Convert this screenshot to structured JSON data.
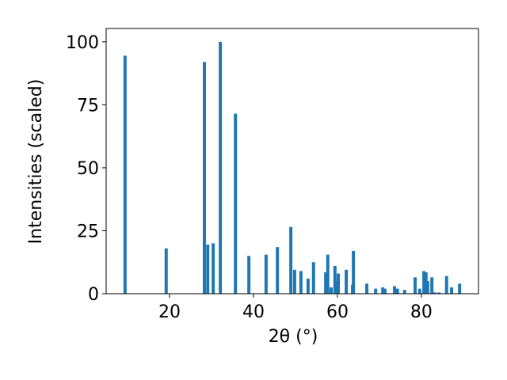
{
  "chart_data": {
    "type": "bar",
    "xlabel": "2θ (°)",
    "ylabel": "Intensities (scaled)",
    "color": "#1f77b4",
    "bar_width": 0.75,
    "x": [
      9.4,
      19.2,
      28.3,
      29.1,
      30.4,
      32.1,
      35.7,
      38.9,
      43.0,
      45.7,
      48.9,
      49.8,
      51.3,
      53.0,
      54.3,
      57.2,
      57.7,
      58.5,
      59.4,
      60.0,
      60.2,
      62.1,
      63.6,
      63.8,
      67.0,
      69.1,
      70.8,
      71.3,
      73.6,
      74.3,
      76.0,
      78.5,
      79.6,
      80.6,
      81.1,
      81.5,
      82.5,
      83.2,
      84.2,
      86.0,
      87.2,
      89.1
    ],
    "values": [
      94.5,
      18,
      92,
      19.5,
      20,
      100,
      71.5,
      15,
      15.5,
      18.5,
      26.5,
      9.5,
      9,
      6,
      12.5,
      8.5,
      15.5,
      2.5,
      11,
      5,
      8,
      9.5,
      3.5,
      17,
      4,
      2,
      2.5,
      2,
      3,
      2,
      1.5,
      6.5,
      2,
      9,
      8.5,
      5,
      6.5,
      0.5,
      0.5,
      7,
      2.5,
      4
    ],
    "xlim": [
      4.9,
      93.6
    ],
    "ylim": [
      0,
      105.3
    ],
    "xticks": [
      20,
      40,
      60,
      80
    ],
    "yticks": [
      0,
      25,
      50,
      75,
      100
    ]
  }
}
